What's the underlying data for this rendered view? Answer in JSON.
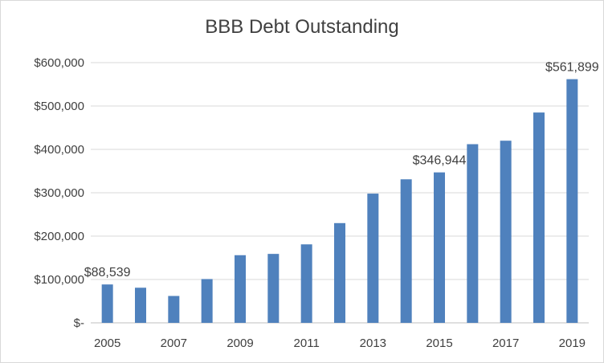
{
  "chart_data": {
    "type": "bar",
    "title": "BBB Debt Outstanding",
    "xlabel": "",
    "ylabel": "",
    "categories": [
      "2005",
      "2006",
      "2007",
      "2008",
      "2009",
      "2010",
      "2011",
      "2012",
      "2013",
      "2014",
      "2015",
      "2016",
      "2017",
      "2018",
      "2019"
    ],
    "x_tick_labels": [
      "2005",
      "2007",
      "2009",
      "2011",
      "2013",
      "2015",
      "2017",
      "2019"
    ],
    "values": [
      88539,
      81000,
      62000,
      101000,
      156000,
      159000,
      181000,
      230000,
      298000,
      331000,
      346944,
      412000,
      420000,
      485000,
      561899
    ],
    "data_labels": [
      {
        "index": 0,
        "text": "$88,539"
      },
      {
        "index": 10,
        "text": "$346,944"
      },
      {
        "index": 14,
        "text": "$561,899"
      }
    ],
    "ylim": [
      0,
      600000
    ],
    "y_ticks": [
      {
        "value": 0,
        "label": "$-"
      },
      {
        "value": 100000,
        "label": "$100,000"
      },
      {
        "value": 200000,
        "label": "$200,000"
      },
      {
        "value": 300000,
        "label": "$300,000"
      },
      {
        "value": 400000,
        "label": "$400,000"
      },
      {
        "value": 500000,
        "label": "$500,000"
      },
      {
        "value": 600000,
        "label": "$600,000"
      }
    ],
    "grid": true,
    "legend": "none",
    "bar_color": "#4f81bd",
    "grid_color": "#d9d9d9",
    "axis_color": "#bfbfbf"
  }
}
